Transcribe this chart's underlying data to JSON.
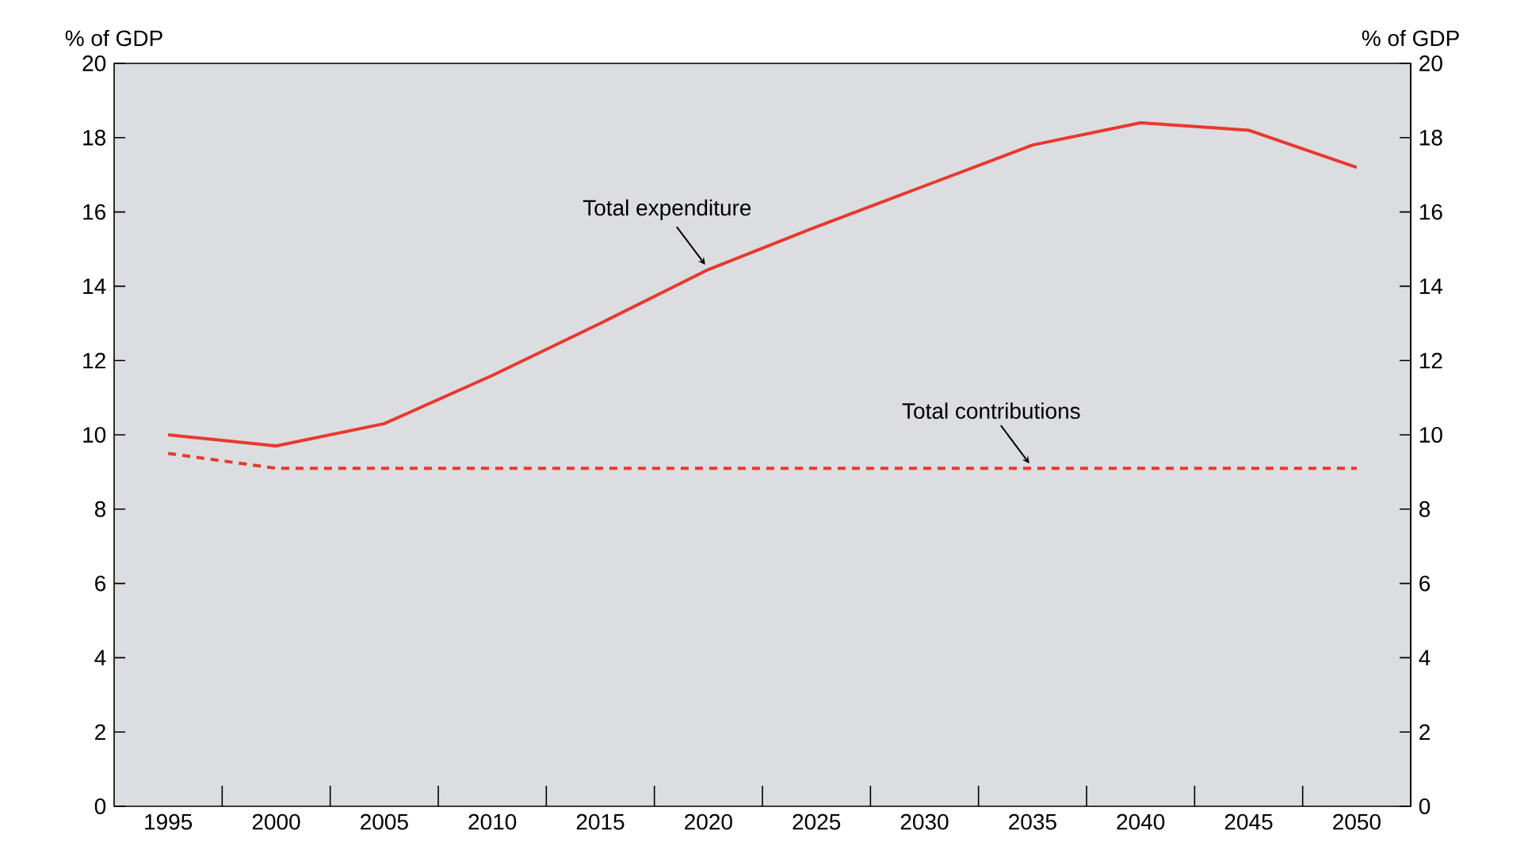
{
  "chart_data": {
    "type": "line",
    "categories": [
      "1995",
      "2000",
      "2005",
      "2010",
      "2015",
      "2020",
      "2025",
      "2030",
      "2035",
      "2040",
      "2045",
      "2050"
    ],
    "series": [
      {
        "color": "#e8392e",
        "line_style": "solid",
        "values": [
          10.0,
          9.7,
          10.3,
          11.6,
          13.0,
          14.45,
          15.6,
          16.7,
          17.8,
          18.4,
          18.2,
          17.2
        ]
      },
      {
        "color": "#e8392e",
        "line_style": "dashed",
        "values": [
          9.5,
          9.1,
          9.1,
          9.1,
          9.1,
          9.1,
          9.1,
          9.1,
          9.1,
          9.1,
          9.1,
          9.1
        ]
      }
    ],
    "ylabel": "% of GDP",
    "y2label": "% of GDP",
    "ylim": [
      0,
      20
    ],
    "yticks": [
      0,
      2,
      4,
      6,
      8,
      10,
      12,
      14,
      16,
      18,
      20
    ],
    "y2lim": [
      0,
      20
    ],
    "y2ticks": [
      0,
      2,
      4,
      6,
      8,
      10,
      12,
      14,
      16,
      18,
      20
    ],
    "annotations": [
      {
        "text": "Total expenditure",
        "x": "2020",
        "y": 14.45
      },
      {
        "text": "Total contributions",
        "x": "2035",
        "y": 9.1
      }
    ]
  }
}
